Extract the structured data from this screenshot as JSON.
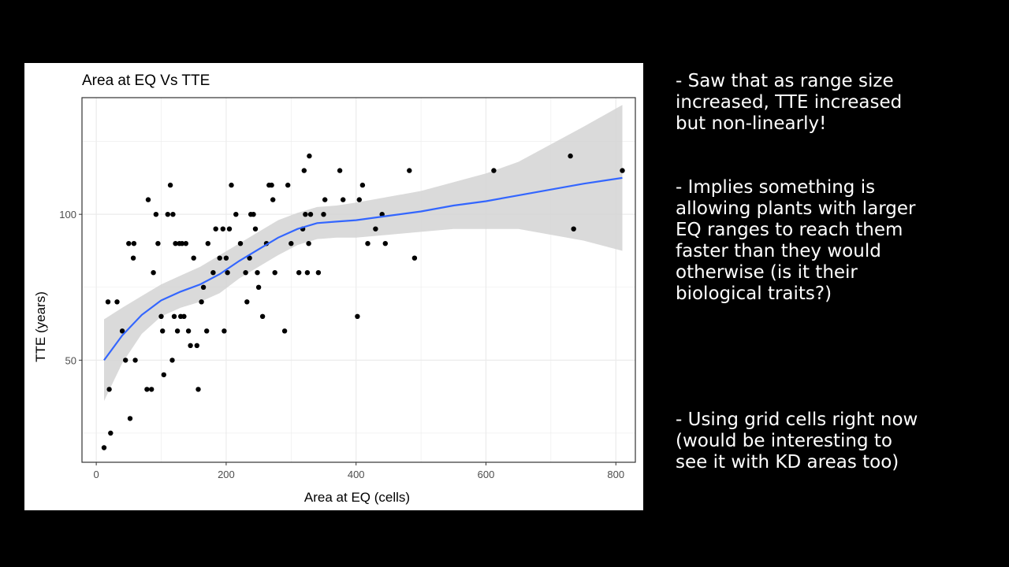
{
  "chart_data": {
    "type": "scatter",
    "title": "Area at EQ Vs TTE",
    "xlabel": "Area at EQ (cells)",
    "ylabel": "TTE (years)",
    "xlim": [
      -22,
      830
    ],
    "ylim": [
      15,
      140
    ],
    "xticks": [
      0,
      200,
      400,
      600,
      800
    ],
    "yticks": [
      50,
      100
    ],
    "grid": true,
    "legend": "none",
    "points": [
      [
        12,
        20
      ],
      [
        18,
        70
      ],
      [
        20,
        40
      ],
      [
        22,
        25
      ],
      [
        32,
        70
      ],
      [
        40,
        60
      ],
      [
        45,
        50
      ],
      [
        50,
        90
      ],
      [
        52,
        30
      ],
      [
        57,
        85
      ],
      [
        58,
        90
      ],
      [
        60,
        50
      ],
      [
        78,
        40
      ],
      [
        80,
        105
      ],
      [
        85,
        40
      ],
      [
        88,
        80
      ],
      [
        92,
        100
      ],
      [
        95,
        90
      ],
      [
        100,
        65
      ],
      [
        102,
        60
      ],
      [
        104,
        45
      ],
      [
        110,
        100
      ],
      [
        114,
        110
      ],
      [
        117,
        50
      ],
      [
        118,
        100
      ],
      [
        120,
        65
      ],
      [
        122,
        90
      ],
      [
        125,
        60
      ],
      [
        128,
        90
      ],
      [
        130,
        65
      ],
      [
        132,
        90
      ],
      [
        135,
        65
      ],
      [
        138,
        90
      ],
      [
        142,
        60
      ],
      [
        145,
        55
      ],
      [
        150,
        85
      ],
      [
        155,
        55
      ],
      [
        157,
        40
      ],
      [
        162,
        70
      ],
      [
        165,
        75
      ],
      [
        170,
        60
      ],
      [
        172,
        90
      ],
      [
        180,
        80
      ],
      [
        184,
        95
      ],
      [
        190,
        85
      ],
      [
        195,
        95
      ],
      [
        197,
        60
      ],
      [
        200,
        85
      ],
      [
        202,
        80
      ],
      [
        205,
        95
      ],
      [
        208,
        110
      ],
      [
        215,
        100
      ],
      [
        222,
        90
      ],
      [
        230,
        80
      ],
      [
        232,
        70
      ],
      [
        236,
        85
      ],
      [
        238,
        100
      ],
      [
        242,
        100
      ],
      [
        245,
        95
      ],
      [
        248,
        80
      ],
      [
        250,
        75
      ],
      [
        256,
        65
      ],
      [
        262,
        90
      ],
      [
        266,
        110
      ],
      [
        270,
        110
      ],
      [
        272,
        105
      ],
      [
        275,
        80
      ],
      [
        290,
        60
      ],
      [
        295,
        110
      ],
      [
        300,
        90
      ],
      [
        312,
        80
      ],
      [
        318,
        95
      ],
      [
        320,
        115
      ],
      [
        322,
        100
      ],
      [
        325,
        80
      ],
      [
        327,
        90
      ],
      [
        328,
        120
      ],
      [
        330,
        100
      ],
      [
        342,
        80
      ],
      [
        350,
        100
      ],
      [
        352,
        105
      ],
      [
        375,
        115
      ],
      [
        380,
        105
      ],
      [
        402,
        65
      ],
      [
        405,
        105
      ],
      [
        410,
        110
      ],
      [
        418,
        90
      ],
      [
        430,
        95
      ],
      [
        440,
        100
      ],
      [
        445,
        90
      ],
      [
        482,
        115
      ],
      [
        490,
        85
      ],
      [
        612,
        115
      ],
      [
        730,
        120
      ],
      [
        735,
        95
      ],
      [
        810,
        115
      ]
    ],
    "smooth": {
      "x": [
        12,
        40,
        70,
        100,
        130,
        160,
        190,
        220,
        250,
        280,
        310,
        340,
        370,
        400,
        450,
        500,
        550,
        600,
        650,
        700,
        750,
        810
      ],
      "y": [
        50,
        58.5,
        65.5,
        70.5,
        73.5,
        76,
        79.5,
        84,
        88,
        92,
        95,
        97,
        97.5,
        98,
        99.5,
        101,
        103,
        104.5,
        106.5,
        108.5,
        110.5,
        112.5
      ],
      "lower": [
        36,
        49,
        59,
        65,
        68,
        70,
        73,
        78,
        82,
        86,
        89.5,
        91.5,
        92,
        92,
        93,
        94,
        95,
        95,
        95,
        93,
        91,
        87.5
      ],
      "upper": [
        64,
        68,
        72,
        76,
        79,
        82,
        86,
        90,
        94,
        98,
        100.5,
        102.5,
        103,
        104,
        106,
        108,
        111,
        114,
        118,
        124,
        130,
        137.5
      ]
    },
    "colors": {
      "point": "#000000",
      "line": "#3366FF",
      "ribbon": "#D3D3D3",
      "grid": "#EBEBEB",
      "panel_border": "#333333",
      "axis_text": "#4D4D4D"
    }
  },
  "notes": {
    "n1": "- Saw that as range size\nincreased, TTE increased\nbut non-linearly!",
    "n2": "- Implies something is\nallowing plants with larger\nEQ ranges to reach them\nfaster than they would\notherwise (is it their\nbiological traits?)",
    "n3": "- Using grid cells right now\n(would be interesting to\nsee it with KD areas too)"
  }
}
